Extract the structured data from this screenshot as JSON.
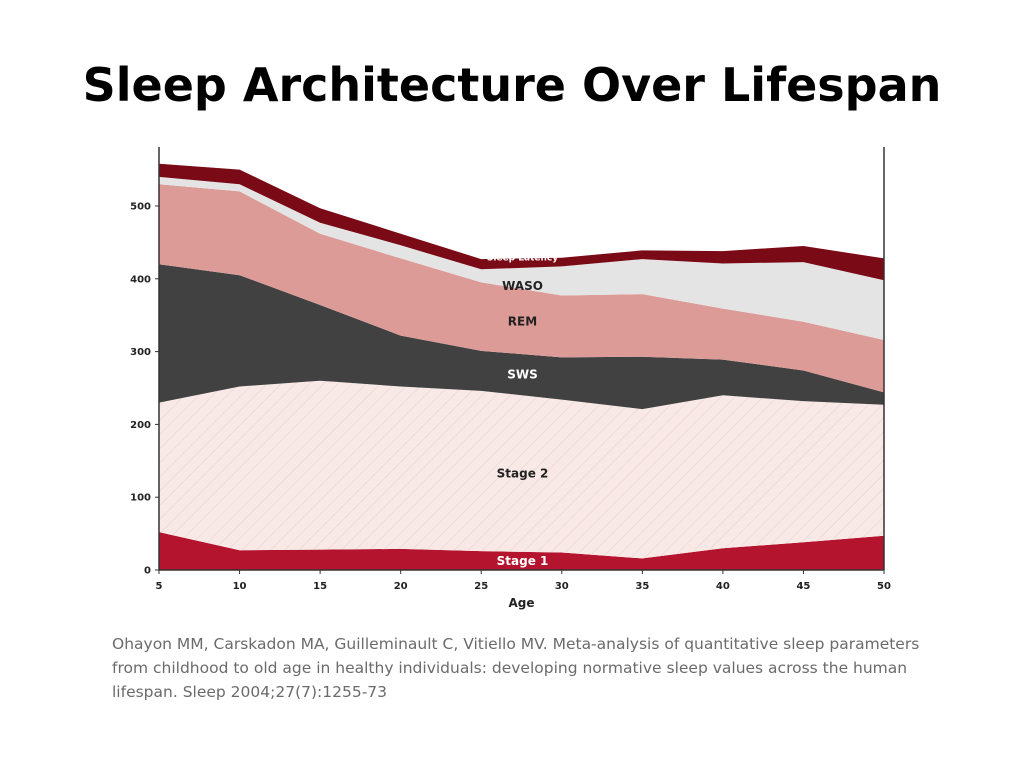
{
  "slide": {
    "title": "Sleep Architecture Over Lifespan",
    "citation": "Ohayon MM, Carskadon MA, Guilleminault C, Vitiello MV. Meta-analysis of quantitative sleep parameters from childhood to old age in healthy individuals: developing normative sleep values across the human lifespan. Sleep 2004;27(7):1255-73"
  },
  "chart_data": {
    "type": "area",
    "stacked": true,
    "title": "",
    "xlabel": "Age",
    "ylabel": "",
    "x": [
      5,
      10,
      15,
      20,
      25,
      30,
      35,
      40,
      45,
      50
    ],
    "xlim": [
      5,
      50
    ],
    "ylim": [
      0,
      580
    ],
    "xticks": [
      "5",
      "10",
      "15",
      "20",
      "25",
      "30",
      "35",
      "40",
      "45",
      "50"
    ],
    "yticks": [
      "0",
      "100",
      "200",
      "300",
      "400",
      "500"
    ],
    "grid": false,
    "series": [
      {
        "name": "Stage 1",
        "color": "#b4142e",
        "label_color": "#ffffff",
        "values": [
          52,
          27,
          28,
          29,
          26,
          24,
          16,
          30,
          38,
          47
        ]
      },
      {
        "name": "Stage 2",
        "color": "#f8e9e6",
        "label_color": "#222222",
        "values": [
          178,
          225,
          232,
          223,
          220,
          210,
          205,
          210,
          194,
          180
        ]
      },
      {
        "name": "SWS",
        "color": "#414141",
        "label_color": "#ffffff",
        "values": [
          190,
          153,
          104,
          70,
          55,
          58,
          72,
          49,
          42,
          17
        ]
      },
      {
        "name": "REM",
        "color": "#dc9b97",
        "label_color": "#222222",
        "values": [
          110,
          115,
          98,
          106,
          94,
          85,
          86,
          70,
          67,
          72
        ]
      },
      {
        "name": "WASO",
        "color": "#e4e4e4",
        "label_color": "#222222",
        "values": [
          10,
          10,
          15,
          18,
          18,
          40,
          48,
          62,
          82,
          82
        ]
      },
      {
        "name": "Sleep Latency",
        "color": "#7a0a16",
        "label_color": "#ffffff",
        "values": [
          18,
          20,
          20,
          16,
          14,
          12,
          12,
          17,
          22,
          30
        ]
      }
    ]
  }
}
